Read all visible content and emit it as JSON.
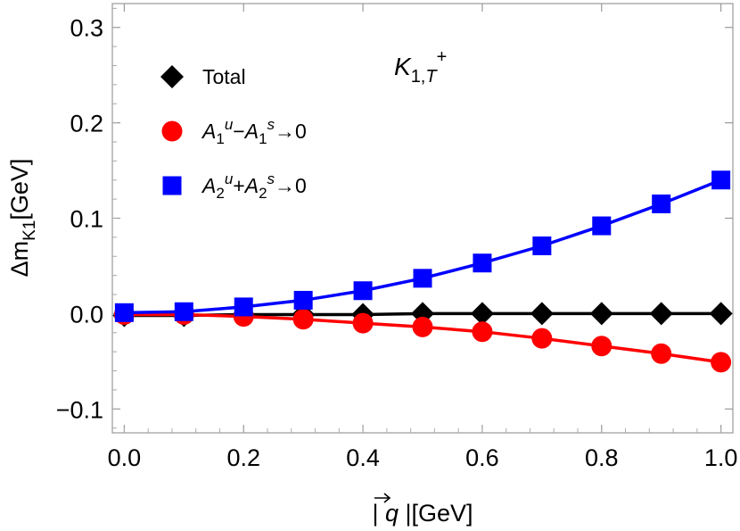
{
  "chart_data": {
    "type": "line",
    "xlabel": "| q⃗ |[GeV]",
    "ylabel": "Δm_K1[GeV]",
    "xlim": [
      -0.02,
      1.02
    ],
    "ylim": [
      -0.125,
      0.325
    ],
    "grid": false,
    "legend_position": "top-left",
    "x_ticks": [
      0.0,
      0.2,
      0.4,
      0.6,
      0.8,
      1.0
    ],
    "x_tick_labels": [
      "0.0",
      "0.2",
      "0.4",
      "0.6",
      "0.8",
      "1.0"
    ],
    "y_ticks": [
      -0.1,
      0.0,
      0.1,
      0.2,
      0.3
    ],
    "y_tick_labels": [
      "−0.1",
      "0.0",
      "0.1",
      "0.2",
      "0.3"
    ],
    "x": [
      0.0,
      0.1,
      0.2,
      0.3,
      0.4,
      0.5,
      0.6,
      0.7,
      0.8,
      0.9,
      1.0
    ],
    "annotation": {
      "base": "K",
      "sub": "1,",
      "sub_italic": "T",
      "sup": "+"
    },
    "series": [
      {
        "name": "Total",
        "marker": "diamond",
        "color": "#000000",
        "values": [
          -0.002,
          -0.002,
          -0.001,
          -0.001,
          -0.001,
          0.0,
          0.0,
          0.0,
          0.0,
          0.0,
          0.0
        ]
      },
      {
        "name": "A1u−A1s→0",
        "label_parts": [
          "A",
          "1",
          "u",
          "−A",
          "1",
          "s",
          "→0"
        ],
        "marker": "circle",
        "color": "#ff0000",
        "values": [
          -0.001,
          -0.001,
          -0.003,
          -0.006,
          -0.01,
          -0.014,
          -0.019,
          -0.026,
          -0.034,
          -0.042,
          -0.051
        ]
      },
      {
        "name": "A2u+A2s→0",
        "label_parts": [
          "A",
          "2",
          "u",
          "+A",
          "2",
          "s",
          "→0"
        ],
        "marker": "square",
        "color": "#0000ff",
        "values": [
          0.001,
          0.002,
          0.007,
          0.014,
          0.024,
          0.037,
          0.053,
          0.071,
          0.092,
          0.115,
          0.14
        ]
      }
    ]
  }
}
